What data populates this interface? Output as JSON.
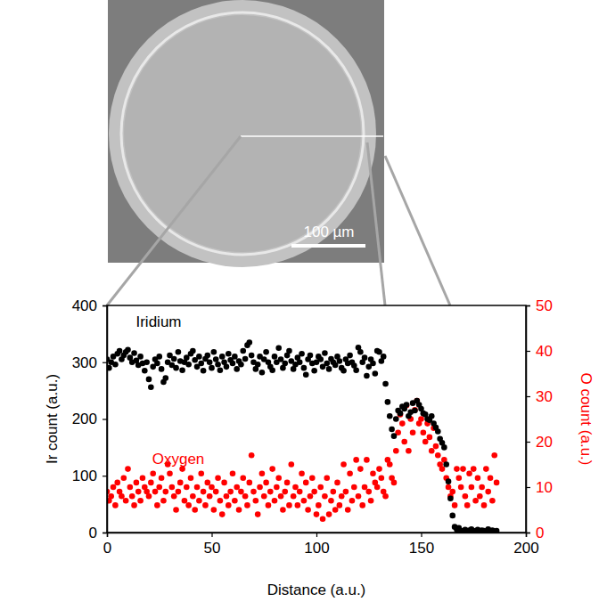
{
  "image": {
    "scale_bar": "100 µm"
  },
  "chart_data": {
    "type": "scatter",
    "xlabel": "Distance (a.u.)",
    "ylabel": "Ir count (a.u.)",
    "y2label": "O count (a.u.)",
    "xlim": [
      0,
      200
    ],
    "xticks": [
      0,
      50,
      100,
      150,
      200
    ],
    "ylim": [
      0,
      400
    ],
    "yticks": [
      0,
      100,
      200,
      300,
      400
    ],
    "y2lim": [
      0,
      50
    ],
    "y2ticks": [
      0,
      10,
      20,
      30,
      40,
      50
    ],
    "grid": false,
    "x": [
      0,
      1,
      2,
      3,
      4,
      5,
      6,
      7,
      8,
      9,
      10,
      11,
      12,
      13,
      14,
      15,
      16,
      17,
      18,
      19,
      20,
      21,
      22,
      23,
      24,
      25,
      26,
      27,
      28,
      29,
      30,
      31,
      32,
      33,
      34,
      35,
      36,
      37,
      38,
      39,
      40,
      41,
      42,
      43,
      44,
      45,
      46,
      47,
      48,
      49,
      50,
      51,
      52,
      53,
      54,
      55,
      56,
      57,
      58,
      59,
      60,
      61,
      62,
      63,
      64,
      65,
      66,
      67,
      68,
      69,
      70,
      71,
      72,
      73,
      74,
      75,
      76,
      77,
      78,
      79,
      80,
      81,
      82,
      83,
      84,
      85,
      86,
      87,
      88,
      89,
      90,
      91,
      92,
      93,
      94,
      95,
      96,
      97,
      98,
      99,
      100,
      101,
      102,
      103,
      104,
      105,
      106,
      107,
      108,
      109,
      110,
      111,
      112,
      113,
      114,
      115,
      116,
      117,
      118,
      119,
      120,
      121,
      122,
      123,
      124,
      125,
      126,
      127,
      128,
      129,
      130,
      131,
      132,
      133,
      134,
      135,
      136,
      137,
      138,
      139,
      140,
      141,
      142,
      143,
      144,
      145,
      146,
      147,
      148,
      149,
      150,
      151,
      152,
      153,
      154,
      155,
      156,
      157,
      158,
      159,
      160,
      161,
      162,
      163,
      164,
      165,
      166,
      167,
      168,
      169,
      170,
      171,
      172,
      173,
      174,
      175,
      176,
      177,
      178,
      179,
      180,
      181,
      182,
      183,
      184,
      185,
      186
    ],
    "series": [
      {
        "name": "Iridium",
        "color": "#000000",
        "marker": "circle",
        "values": [
          305,
          290,
          300,
          310,
          296,
          315,
          320,
          305,
          312,
          318,
          322,
          308,
          300,
          316,
          303,
          295,
          310,
          298,
          285,
          300,
          270,
          256,
          292,
          305,
          298,
          310,
          288,
          265,
          272,
          300,
          312,
          295,
          306,
          290,
          318,
          302,
          286,
          300,
          308,
          296,
          315,
          320,
          304,
          292,
          310,
          298,
          285,
          306,
          312,
          300,
          290,
          318,
          305,
          296,
          286,
          310,
          300,
          292,
          315,
          304,
          298,
          310,
          288,
          302,
          296,
          320,
          306,
          330,
          335,
          312,
          300,
          288,
          296,
          310,
          282,
          305,
          318,
          300,
          292,
          286,
          310,
          300,
          325,
          305,
          290,
          298,
          312,
          320,
          302,
          288,
          296,
          308,
          300,
          315,
          290,
          278,
          305,
          312,
          298,
          285,
          300,
          310,
          305,
          292,
          316,
          298,
          288,
          306,
          300,
          295,
          310,
          302,
          290,
          285,
          305,
          298,
          312,
          300,
          294,
          286,
          326,
          318,
          300,
          308,
          276,
          292,
          305,
          298,
          280,
          320,
          318,
          302,
          310,
          262,
          230,
          205,
          182,
          170,
          200,
          215,
          210,
          222,
          218,
          225,
          205,
          212,
          228,
          215,
          232,
          225,
          218,
          210,
          208,
          200,
          198,
          205,
          192,
          185,
          178,
          165,
          158,
          150,
          120,
          90,
          60,
          30,
          10,
          5,
          8,
          3,
          2,
          5,
          0,
          4,
          6,
          3,
          0,
          5,
          2,
          4,
          3,
          0,
          6,
          2,
          4,
          1,
          3
        ]
      },
      {
        "name": "Oxygen",
        "color": "#ff0000",
        "marker": "circle",
        "axis": "y2",
        "values": [
          9,
          7,
          8,
          10,
          6,
          11,
          9,
          8,
          12,
          7,
          14,
          10,
          8,
          6,
          11,
          9,
          7,
          12,
          10,
          9,
          8,
          11,
          13,
          9,
          6,
          10,
          12,
          7,
          9,
          15,
          13,
          10,
          8,
          5,
          9,
          11,
          14,
          7,
          10,
          6,
          12,
          8,
          5,
          10,
          7,
          13,
          9,
          6,
          11,
          8,
          10,
          5,
          9,
          12,
          7,
          4,
          11,
          8,
          6,
          9,
          13,
          7,
          10,
          5,
          9,
          12,
          8,
          6,
          11,
          17,
          9,
          7,
          4,
          10,
          13,
          8,
          11,
          6,
          9,
          14,
          7,
          10,
          12,
          8,
          5,
          9,
          11,
          6,
          15,
          8,
          10,
          6,
          9,
          13,
          7,
          11,
          5,
          8,
          12,
          9,
          4,
          6,
          10,
          3,
          8,
          12,
          4,
          7,
          9,
          5,
          11,
          6,
          8,
          15,
          9,
          5,
          13,
          7,
          10,
          16,
          8,
          14,
          6,
          10,
          16,
          9,
          7,
          13,
          11,
          10,
          14,
          12,
          9,
          8,
          16,
          15,
          12,
          11,
          18,
          22,
          26,
          24,
          20,
          28,
          18,
          25,
          22,
          27,
          29,
          24,
          25,
          22,
          20,
          24,
          21,
          18,
          23,
          19,
          17,
          15,
          14,
          16,
          12,
          10,
          8,
          9,
          6,
          14,
          12,
          10,
          14,
          8,
          6,
          13,
          10,
          14,
          7,
          12,
          8,
          10,
          6,
          14,
          9,
          12,
          7,
          17,
          11
        ]
      }
    ]
  }
}
